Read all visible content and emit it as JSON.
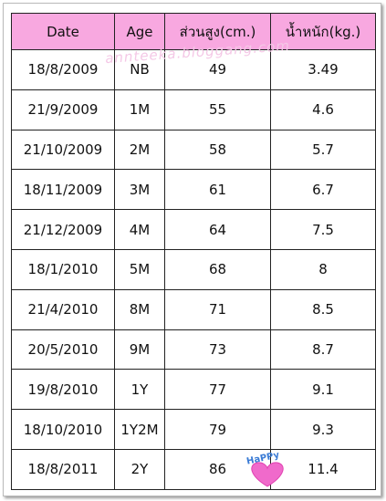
{
  "table": {
    "header": [
      "Date",
      "Age",
      "ส่วนสูง(cm.)",
      "น้ำหนัก(kg.)"
    ],
    "rows": [
      [
        "18/8/2009",
        "NB",
        "49",
        "3.49"
      ],
      [
        "21/9/2009",
        "1M",
        "55",
        "4.6"
      ],
      [
        "21/10/2009",
        "2M",
        "58",
        "5.7"
      ],
      [
        "18/11/2009",
        "3M",
        "61",
        "6.7"
      ],
      [
        "21/12/2009",
        "4M",
        "64",
        "7.5"
      ],
      [
        "18/1/2010",
        "5M",
        "68",
        "8"
      ],
      [
        "21/4/2010",
        "8M",
        "71",
        "8.5"
      ],
      [
        "20/5/2010",
        "9M",
        "73",
        "8.7"
      ],
      [
        "19/8/2010",
        "1Y",
        "77",
        "9.1"
      ],
      [
        "18/10/2010",
        "1Y2M",
        "79",
        "9.3"
      ],
      [
        "18/8/2011",
        "2Y",
        "86",
        "11.4"
      ]
    ]
  },
  "watermark": "annteeka.bloggang.com",
  "sticker": "HaPPy"
}
